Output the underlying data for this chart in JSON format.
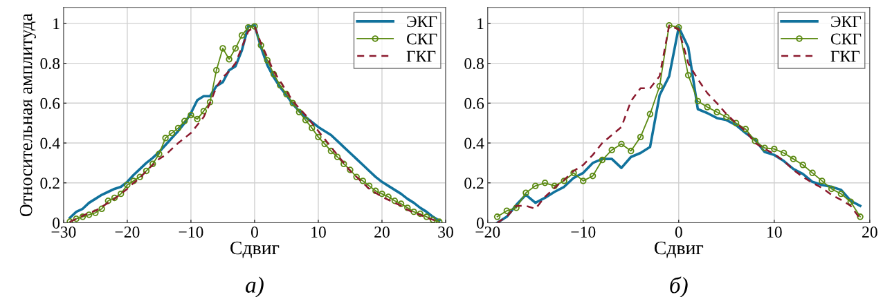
{
  "chart_data": [
    {
      "type": "line",
      "xlabel": "Сдвиг",
      "ylabel": "Относительная амплитуда",
      "annotations": [
        "а)"
      ],
      "x": [
        -29,
        -28,
        -27,
        -26,
        -25,
        -24,
        -23,
        -22,
        -21,
        -20,
        -19,
        -18,
        -17,
        -16,
        -15,
        -14,
        -13,
        -12,
        -11,
        -10,
        -9,
        -8,
        -7,
        -6,
        -5,
        -4,
        -3,
        -2,
        -1,
        0,
        1,
        2,
        3,
        4,
        5,
        6,
        7,
        8,
        9,
        10,
        11,
        12,
        13,
        14,
        15,
        16,
        17,
        18,
        19,
        20,
        21,
        22,
        23,
        24,
        25,
        26,
        27,
        28,
        29
      ],
      "xlim": [
        -30,
        30
      ],
      "xticks": [
        -30,
        -20,
        -10,
        0,
        10,
        20,
        30
      ],
      "ylim": [
        0,
        1.08
      ],
      "yticks": [
        0,
        0.2,
        0.4,
        0.6,
        0.8,
        1
      ],
      "grid": true,
      "legend": "top right",
      "series": [
        {
          "name": "ЭКГ",
          "color": "#11729c",
          "marker": "none",
          "line_style": "solid",
          "values": [
            0.025,
            0.055,
            0.07,
            0.1,
            0.12,
            0.14,
            0.155,
            0.17,
            0.18,
            0.205,
            0.24,
            0.27,
            0.3,
            0.325,
            0.355,
            0.39,
            0.425,
            0.46,
            0.5,
            0.55,
            0.615,
            0.635,
            0.635,
            0.685,
            0.705,
            0.765,
            0.785,
            0.865,
            0.985,
            0.99,
            0.88,
            0.79,
            0.73,
            0.68,
            0.64,
            0.595,
            0.56,
            0.53,
            0.505,
            0.48,
            0.46,
            0.44,
            0.41,
            0.38,
            0.35,
            0.32,
            0.29,
            0.26,
            0.23,
            0.205,
            0.185,
            0.165,
            0.145,
            0.12,
            0.1,
            0.075,
            0.055,
            0.03,
            0.01
          ]
        },
        {
          "name": "СКГ",
          "color": "#5b8a12",
          "marker": "circle",
          "line_style": "solid",
          "values": [
            0.006,
            0.02,
            0.03,
            0.04,
            0.05,
            0.07,
            0.11,
            0.125,
            0.145,
            0.19,
            0.21,
            0.23,
            0.26,
            0.295,
            0.345,
            0.425,
            0.45,
            0.475,
            0.51,
            0.54,
            0.52,
            0.56,
            0.605,
            0.765,
            0.875,
            0.82,
            0.875,
            0.94,
            0.98,
            0.985,
            0.89,
            0.815,
            0.745,
            0.69,
            0.645,
            0.6,
            0.555,
            0.515,
            0.475,
            0.43,
            0.395,
            0.36,
            0.33,
            0.295,
            0.265,
            0.23,
            0.21,
            0.185,
            0.16,
            0.145,
            0.13,
            0.11,
            0.095,
            0.075,
            0.055,
            0.045,
            0.03,
            0.015,
            0.005
          ]
        },
        {
          "name": "ГКГ",
          "color": "#8b1a2e",
          "marker": "none",
          "line_style": "dashed",
          "values": [
            0.005,
            0.02,
            0.035,
            0.05,
            0.06,
            0.08,
            0.1,
            0.12,
            0.145,
            0.17,
            0.2,
            0.225,
            0.26,
            0.29,
            0.32,
            0.34,
            0.37,
            0.4,
            0.425,
            0.45,
            0.49,
            0.53,
            0.6,
            0.68,
            0.73,
            0.76,
            0.8,
            0.88,
            0.96,
            0.985,
            0.9,
            0.83,
            0.76,
            0.71,
            0.66,
            0.61,
            0.575,
            0.54,
            0.5,
            0.46,
            0.42,
            0.38,
            0.34,
            0.3,
            0.26,
            0.23,
            0.2,
            0.17,
            0.15,
            0.13,
            0.115,
            0.1,
            0.085,
            0.065,
            0.05,
            0.04,
            0.025,
            0.015,
            0.005
          ]
        }
      ]
    },
    {
      "type": "line",
      "xlabel": "Сдвиг",
      "annotations": [
        "б)"
      ],
      "x": [
        -19,
        -18,
        -17,
        -16,
        -15,
        -14,
        -13,
        -12,
        -11,
        -10,
        -9,
        -8,
        -7,
        -6,
        -5,
        -4,
        -3,
        -2,
        -1,
        0,
        1,
        2,
        3,
        4,
        5,
        6,
        7,
        8,
        9,
        10,
        11,
        12,
        13,
        14,
        15,
        16,
        17,
        18,
        19
      ],
      "xlim": [
        -20,
        20
      ],
      "xticks": [
        -20,
        -10,
        0,
        10,
        20
      ],
      "ylim": [
        0,
        1.08
      ],
      "yticks": [
        0,
        0.2,
        0.4,
        0.6,
        0.8,
        1
      ],
      "grid": true,
      "legend": "top right",
      "series": [
        {
          "name": "ЭКГ",
          "color": "#11729c",
          "marker": "none",
          "line_style": "solid",
          "values": [
            0.0,
            0.03,
            0.09,
            0.14,
            0.1,
            0.125,
            0.155,
            0.18,
            0.225,
            0.25,
            0.3,
            0.32,
            0.32,
            0.275,
            0.33,
            0.35,
            0.38,
            0.64,
            0.735,
            0.98,
            0.88,
            0.57,
            0.55,
            0.525,
            0.515,
            0.49,
            0.45,
            0.415,
            0.355,
            0.34,
            0.31,
            0.27,
            0.245,
            0.205,
            0.19,
            0.18,
            0.165,
            0.11,
            0.085
          ]
        },
        {
          "name": "СКГ",
          "color": "#5b8a12",
          "marker": "circle",
          "line_style": "solid",
          "values": [
            0.03,
            0.06,
            0.075,
            0.15,
            0.185,
            0.2,
            0.185,
            0.21,
            0.25,
            0.21,
            0.235,
            0.315,
            0.365,
            0.395,
            0.36,
            0.43,
            0.545,
            0.685,
            0.99,
            0.98,
            0.74,
            0.61,
            0.58,
            0.555,
            0.53,
            0.5,
            0.47,
            0.41,
            0.375,
            0.37,
            0.35,
            0.32,
            0.29,
            0.25,
            0.21,
            0.17,
            0.145,
            0.105,
            0.03
          ]
        },
        {
          "name": "ГКГ",
          "color": "#8b1a2e",
          "marker": "none",
          "line_style": "dashed",
          "values": [
            0.0,
            0.03,
            0.085,
            0.085,
            0.07,
            0.13,
            0.175,
            0.215,
            0.26,
            0.29,
            0.34,
            0.4,
            0.44,
            0.48,
            0.61,
            0.675,
            0.675,
            0.735,
            0.99,
            0.97,
            0.8,
            0.72,
            0.65,
            0.6,
            0.545,
            0.5,
            0.46,
            0.4,
            0.37,
            0.345,
            0.31,
            0.265,
            0.23,
            0.2,
            0.175,
            0.14,
            0.115,
            0.085,
            0.02
          ]
        }
      ]
    }
  ]
}
